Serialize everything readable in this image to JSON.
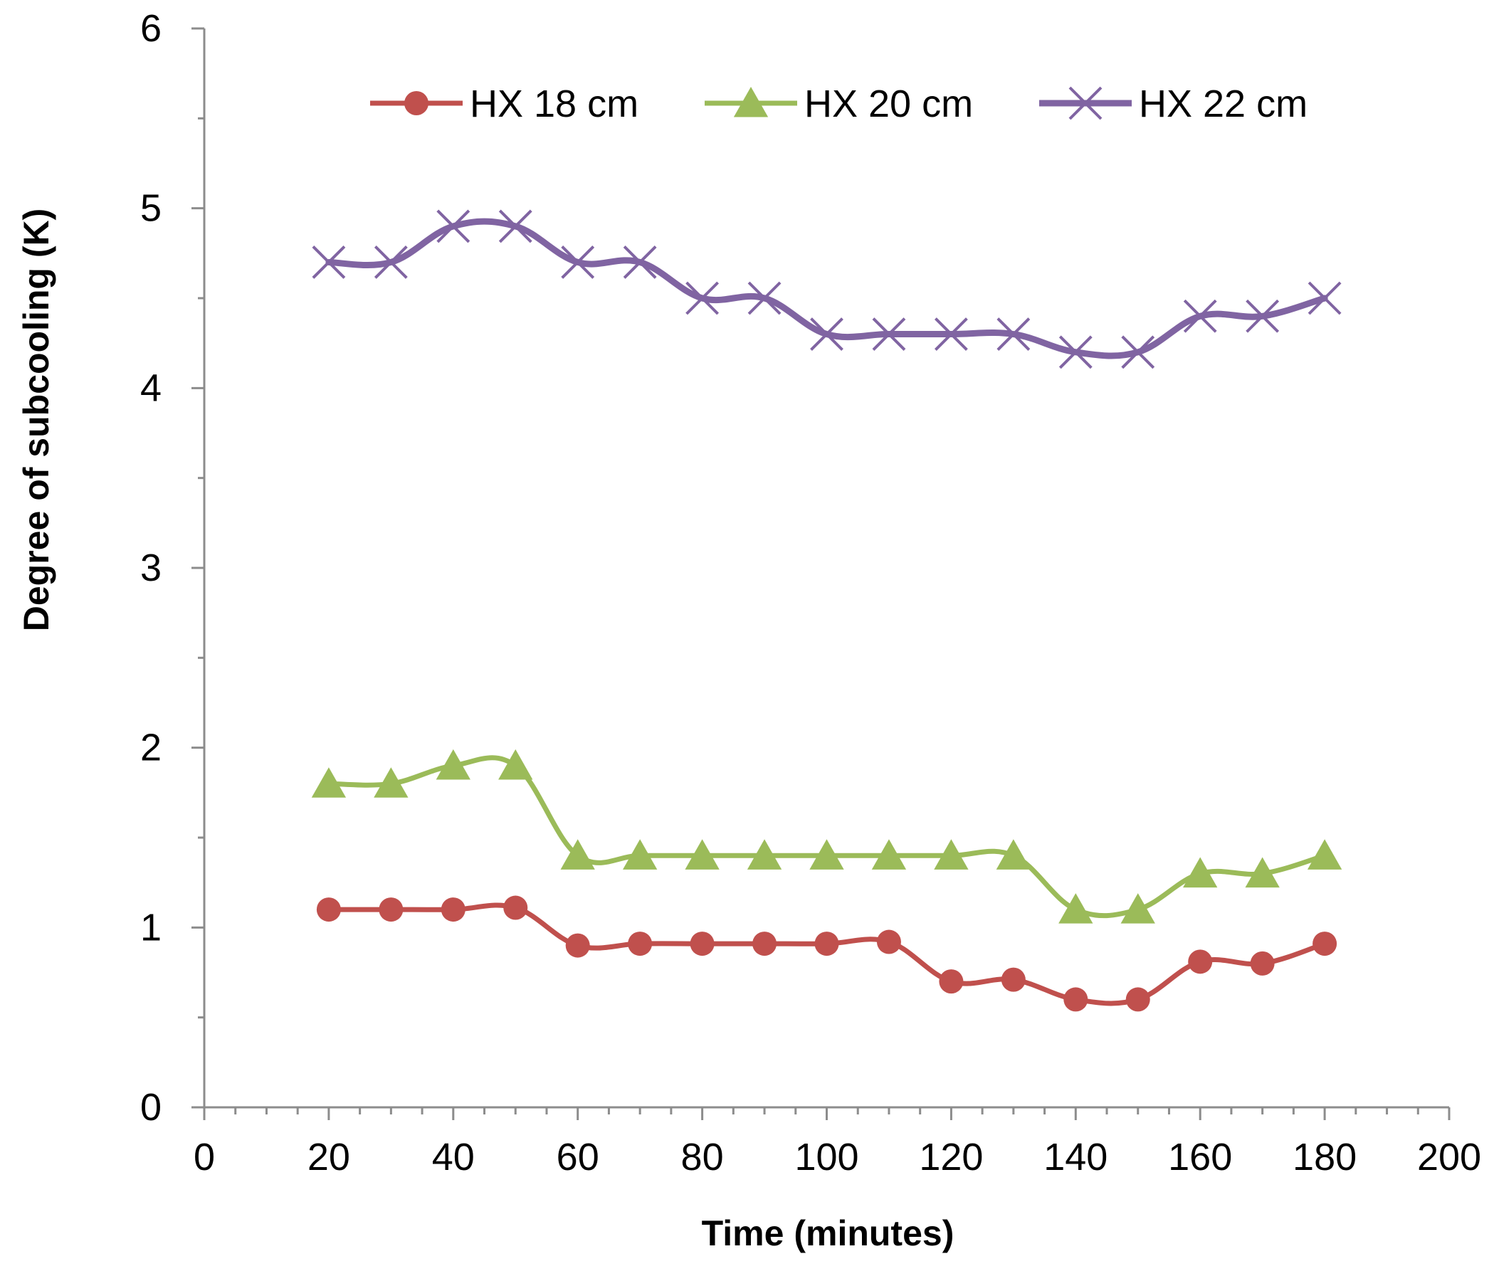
{
  "chart_data": {
    "type": "line",
    "title": "",
    "xlabel": "Time (minutes)",
    "ylabel": "Degree of subcooling (K)",
    "xlim": [
      0,
      200
    ],
    "ylim": [
      0,
      6
    ],
    "x_ticks": [
      0,
      20,
      40,
      60,
      80,
      100,
      120,
      140,
      160,
      180,
      200
    ],
    "y_ticks": [
      0,
      1,
      2,
      3,
      4,
      5,
      6
    ],
    "grid": false,
    "legend_position": "top",
    "x": [
      20,
      30,
      40,
      50,
      60,
      70,
      80,
      90,
      100,
      110,
      120,
      130,
      140,
      150,
      160,
      170,
      180
    ],
    "series": [
      {
        "name": "HX 18 cm",
        "color": "#C0504D",
        "marker": "circle",
        "values": [
          1.1,
          1.1,
          1.1,
          1.11,
          0.9,
          0.91,
          0.91,
          0.91,
          0.91,
          0.92,
          0.7,
          0.71,
          0.6,
          0.6,
          0.81,
          0.8,
          0.91
        ]
      },
      {
        "name": "HX 20 cm",
        "color": "#9BBB59",
        "marker": "triangle",
        "values": [
          1.8,
          1.8,
          1.9,
          1.9,
          1.4,
          1.4,
          1.4,
          1.4,
          1.4,
          1.4,
          1.4,
          1.4,
          1.1,
          1.1,
          1.3,
          1.3,
          1.4
        ]
      },
      {
        "name": "HX 22 cm",
        "color": "#8064A2",
        "marker": "x",
        "values": [
          4.7,
          4.7,
          4.9,
          4.9,
          4.7,
          4.7,
          4.5,
          4.5,
          4.3,
          4.3,
          4.3,
          4.3,
          4.2,
          4.2,
          4.4,
          4.4,
          4.5
        ]
      }
    ]
  }
}
